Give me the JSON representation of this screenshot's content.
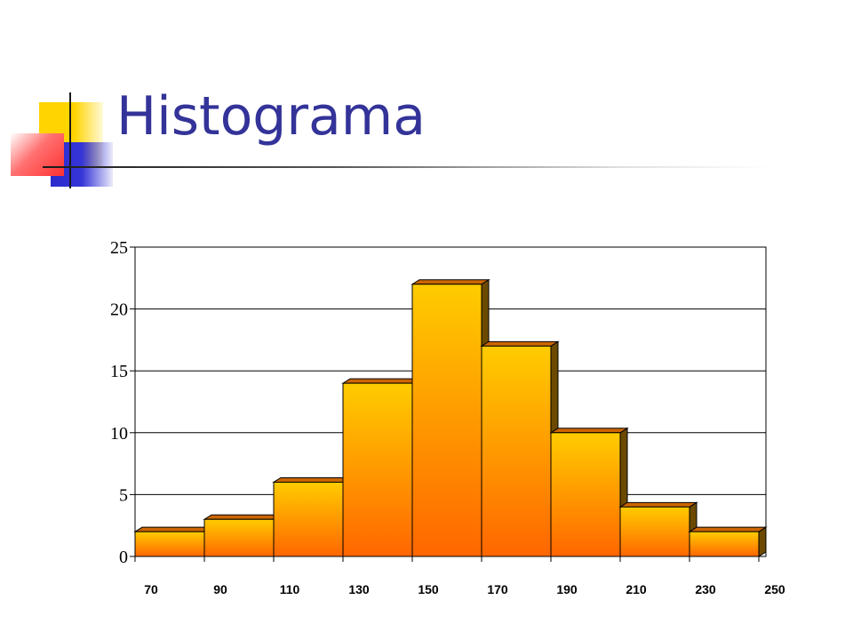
{
  "title": "Histograma",
  "colors": {
    "title": "#333399",
    "bar_top": "#ffcc00",
    "bar_bottom": "#ff6600",
    "bar_cap": "#cc6600",
    "bar_side": "#6b4a00"
  },
  "chart_data": {
    "type": "bar",
    "x_tick_labels": [
      "70",
      "90",
      "110",
      "130",
      "150",
      "170",
      "190",
      "210",
      "230",
      "250"
    ],
    "values": [
      2,
      3,
      6,
      14,
      22,
      17,
      10,
      4,
      2
    ],
    "y_tick_labels": [
      "0",
      "5",
      "10",
      "15",
      "20",
      "25"
    ],
    "ylim": [
      0,
      25
    ],
    "grid": true,
    "legend": "none"
  }
}
